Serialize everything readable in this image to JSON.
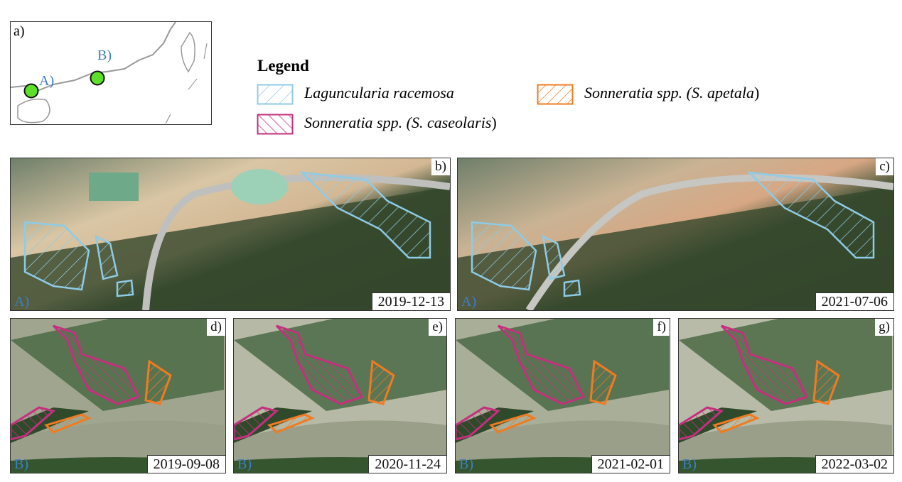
{
  "inset": {
    "label": "a)",
    "sites": [
      "A)",
      "B)"
    ],
    "marker_color": "#5de02a",
    "site_label_color": "#3a7fc8"
  },
  "legend": {
    "title": "Legend",
    "items": [
      {
        "label": "Laguncularia racemosa",
        "color": "#8ecbe6",
        "hatch": "forward"
      },
      {
        "label": "Sonneratia spp. (S. apetala)",
        "prefix": "Sonneratia spp. (",
        "species": "S. apetala",
        "suffix": ")",
        "color": "#f07b21",
        "hatch": "forward"
      },
      {
        "label": "Sonneratia spp. (S. caseolaris)",
        "prefix": "Sonneratia spp. (",
        "species": "S. caseolaris",
        "suffix": ")",
        "color": "#c52f7e",
        "hatch": "backward"
      }
    ]
  },
  "panels": [
    {
      "label": "b)",
      "site": "A)",
      "date": "2019-12-13"
    },
    {
      "label": "c)",
      "site": "A)",
      "date": "2021-07-06"
    },
    {
      "label": "d)",
      "site": "B)",
      "date": "2019-09-08"
    },
    {
      "label": "e)",
      "site": "B)",
      "date": "2020-11-24"
    },
    {
      "label": "f)",
      "site": "B)",
      "date": "2021-02-01"
    },
    {
      "label": "g)",
      "site": "B)",
      "date": "2022-03-02"
    }
  ]
}
